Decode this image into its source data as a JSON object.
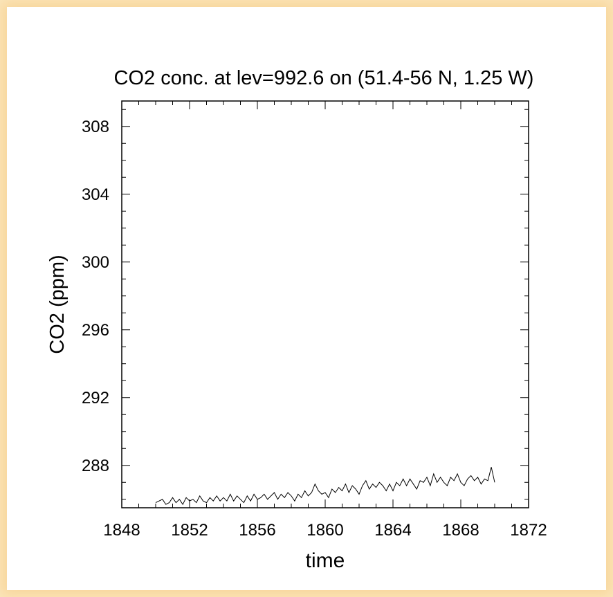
{
  "chart_data": {
    "type": "line",
    "title": "CO2 conc. at lev=992.6 on (51.4-56 N, 1.25 W)",
    "xlabel": "time",
    "ylabel": "CO2 (ppm)",
    "xlim": [
      1848,
      1872
    ],
    "ylim": [
      285.5,
      309.5
    ],
    "xticks": [
      1848,
      1852,
      1856,
      1860,
      1864,
      1868,
      1872
    ],
    "xtick_labels": [
      "1848",
      "1852",
      "1856",
      "1860",
      "1864",
      "1868",
      "1872"
    ],
    "yticks": [
      288,
      292,
      296,
      300,
      304,
      308
    ],
    "ytick_labels": [
      "288",
      "292",
      "296",
      "300",
      "304",
      "308"
    ],
    "grid": false,
    "series": [
      {
        "x": [
          1850.0,
          1850.2,
          1850.4,
          1850.6,
          1850.8,
          1851.0,
          1851.2,
          1851.4,
          1851.6,
          1851.8,
          1852.0,
          1852.2,
          1852.4,
          1852.6,
          1852.8,
          1853.0,
          1853.2,
          1853.4,
          1853.6,
          1853.8,
          1854.0,
          1854.2,
          1854.4,
          1854.6,
          1854.8,
          1855.0,
          1855.2,
          1855.4,
          1855.6,
          1855.8,
          1856.0,
          1856.2,
          1856.4,
          1856.6,
          1856.8,
          1857.0,
          1857.2,
          1857.4,
          1857.6,
          1857.8,
          1858.0,
          1858.2,
          1858.4,
          1858.6,
          1858.8,
          1859.0,
          1859.2,
          1859.4,
          1859.6,
          1859.8,
          1860.0,
          1860.2,
          1860.4,
          1860.6,
          1860.8,
          1861.0,
          1861.2,
          1861.4,
          1861.6,
          1861.8,
          1862.0,
          1862.2,
          1862.4,
          1862.6,
          1862.8,
          1863.0,
          1863.2,
          1863.4,
          1863.6,
          1863.8,
          1864.0,
          1864.2,
          1864.4,
          1864.6,
          1864.8,
          1865.0,
          1865.2,
          1865.4,
          1865.6,
          1865.8,
          1866.0,
          1866.2,
          1866.4,
          1866.6,
          1866.8,
          1867.0,
          1867.2,
          1867.4,
          1867.6,
          1867.8,
          1868.0,
          1868.2,
          1868.4,
          1868.6,
          1868.8,
          1869.0,
          1869.2,
          1869.4,
          1869.6,
          1869.8,
          1870.0
        ],
        "y": [
          285.8,
          285.9,
          286.0,
          285.7,
          285.8,
          286.1,
          285.8,
          286.0,
          285.7,
          286.1,
          285.9,
          286.0,
          285.8,
          286.2,
          285.9,
          285.8,
          286.1,
          285.9,
          286.2,
          285.9,
          286.1,
          285.9,
          286.3,
          285.9,
          286.2,
          286.0,
          285.8,
          286.2,
          285.9,
          286.3,
          286.0,
          286.1,
          286.3,
          286.0,
          286.2,
          286.4,
          286.0,
          286.3,
          286.1,
          286.4,
          286.2,
          285.9,
          286.3,
          286.1,
          286.5,
          286.2,
          286.4,
          286.9,
          286.5,
          286.3,
          286.4,
          286.1,
          286.6,
          286.4,
          286.7,
          286.5,
          286.9,
          286.4,
          286.8,
          286.6,
          286.3,
          286.8,
          287.1,
          286.6,
          286.9,
          286.7,
          287.0,
          286.8,
          286.5,
          286.9,
          286.5,
          287.0,
          286.8,
          287.2,
          286.8,
          287.2,
          286.9,
          286.6,
          287.1,
          287.0,
          287.3,
          286.8,
          287.5,
          287.0,
          287.3,
          287.0,
          286.8,
          287.3,
          287.1,
          287.5,
          287.0,
          286.8,
          287.2,
          287.4,
          287.1,
          287.3,
          286.9,
          287.2,
          287.1,
          287.9,
          287.0
        ]
      }
    ]
  }
}
